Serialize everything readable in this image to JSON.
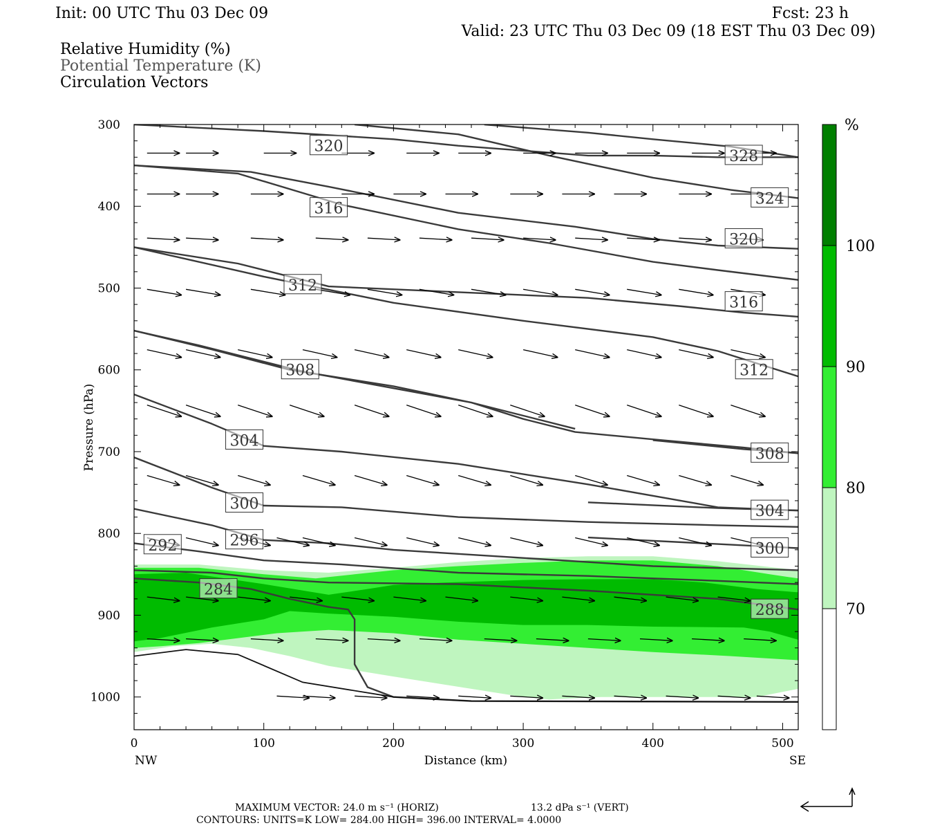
{
  "header": {
    "init": "Init: 00 UTC Thu 03 Dec 09",
    "fcst": "Fcst:   23 h",
    "valid": "Valid: 23 UTC Thu 03 Dec 09 (18 EST Thu 03 Dec 09)",
    "legend_lines": [
      "Relative Humidity (%)",
      "Potential Temperature (K)",
      "Circulation Vectors"
    ]
  },
  "chart_data": {
    "type": "cross-section",
    "xlabel": "Distance (km)",
    "ylabel": "Pressure (hPa)",
    "xlim": [
      0,
      512
    ],
    "ylim": [
      1040,
      300
    ],
    "x_ticks": [
      0,
      100,
      200,
      300,
      400,
      500
    ],
    "y_ticks": [
      300,
      400,
      500,
      600,
      700,
      800,
      900,
      1000
    ],
    "x_end_labels": {
      "left": "NW",
      "right": "SE"
    },
    "colorbar": {
      "unit": "%",
      "levels": [
        70,
        80,
        90,
        100
      ],
      "colors": [
        "#ffffff",
        "#bff5bf",
        "#33ee33",
        "#00bb00",
        "#007f00"
      ]
    },
    "rh_fills": [
      {
        "level": 70,
        "color": "#bff5bf",
        "points": [
          [
            0,
            838
          ],
          [
            50,
            838
          ],
          [
            100,
            845
          ],
          [
            150,
            848
          ],
          [
            200,
            842
          ],
          [
            250,
            835
          ],
          [
            300,
            830
          ],
          [
            350,
            828
          ],
          [
            400,
            828
          ],
          [
            450,
            834
          ],
          [
            512,
            845
          ],
          [
            512,
            990
          ],
          [
            480,
            1000
          ],
          [
            420,
            1000
          ],
          [
            360,
            1000
          ],
          [
            320,
            1003
          ],
          [
            300,
            1000
          ],
          [
            260,
            990
          ],
          [
            200,
            975
          ],
          [
            150,
            962
          ],
          [
            120,
            950
          ],
          [
            90,
            940
          ],
          [
            60,
            935
          ],
          [
            30,
            938
          ],
          [
            0,
            945
          ]
        ]
      },
      {
        "level": 80,
        "color": "#33ee33",
        "points": [
          [
            0,
            842
          ],
          [
            50,
            842
          ],
          [
            100,
            850
          ],
          [
            140,
            855
          ],
          [
            170,
            850
          ],
          [
            200,
            845
          ],
          [
            250,
            840
          ],
          [
            300,
            836
          ],
          [
            350,
            833
          ],
          [
            400,
            833
          ],
          [
            450,
            840
          ],
          [
            490,
            850
          ],
          [
            512,
            855
          ],
          [
            512,
            955
          ],
          [
            460,
            950
          ],
          [
            400,
            945
          ],
          [
            350,
            940
          ],
          [
            300,
            935
          ],
          [
            250,
            930
          ],
          [
            200,
            922
          ],
          [
            150,
            918
          ],
          [
            110,
            922
          ],
          [
            80,
            928
          ],
          [
            50,
            934
          ],
          [
            20,
            938
          ],
          [
            0,
            940
          ]
        ]
      },
      {
        "level": 90,
        "color": "#00bb00",
        "points": [
          [
            0,
            850
          ],
          [
            40,
            848
          ],
          [
            70,
            855
          ],
          [
            100,
            862
          ],
          [
            150,
            875
          ],
          [
            180,
            868
          ],
          [
            200,
            863
          ],
          [
            240,
            860
          ],
          [
            300,
            857
          ],
          [
            350,
            856
          ],
          [
            400,
            856
          ],
          [
            440,
            860
          ],
          [
            480,
            868
          ],
          [
            512,
            872
          ],
          [
            512,
            930
          ],
          [
            490,
            920
          ],
          [
            470,
            915
          ],
          [
            400,
            914
          ],
          [
            350,
            912
          ],
          [
            300,
            912
          ],
          [
            250,
            908
          ],
          [
            200,
            902
          ],
          [
            150,
            898
          ],
          [
            120,
            895
          ],
          [
            100,
            905
          ],
          [
            60,
            915
          ],
          [
            20,
            928
          ],
          [
            0,
            932
          ]
        ]
      }
    ],
    "theta_contours": [
      {
        "label": "320",
        "label_at": [
          150,
          326
        ],
        "points": [
          [
            0,
            300
          ],
          [
            100,
            308
          ],
          [
            200,
            318
          ],
          [
            250,
            326
          ],
          [
            300,
            332
          ],
          [
            350,
            338
          ],
          [
            400,
            338
          ],
          [
            450,
            340
          ],
          [
            512,
            340
          ]
        ]
      },
      {
        "label": "328",
        "label_at": [
          470,
          338
        ],
        "points": [
          [
            270,
            300
          ],
          [
            350,
            310
          ],
          [
            400,
            318
          ],
          [
            460,
            327
          ],
          [
            512,
            340
          ]
        ]
      },
      {
        "label": "324",
        "label_at": [
          490,
          390
        ],
        "points": [
          [
            170,
            300
          ],
          [
            250,
            312
          ],
          [
            320,
            338
          ],
          [
            400,
            365
          ],
          [
            460,
            380
          ],
          [
            512,
            390
          ]
        ]
      },
      {
        "label": "316",
        "label_at": [
          150,
          402
        ],
        "points": [
          [
            0,
            350
          ],
          [
            80,
            360
          ],
          [
            160,
            398
          ],
          [
            250,
            428
          ],
          [
            320,
            445
          ],
          [
            400,
            468
          ],
          [
            450,
            478
          ],
          [
            512,
            490
          ]
        ]
      },
      {
        "label": "320",
        "label_at": [
          470,
          440
        ],
        "points": [
          [
            0,
            350
          ],
          [
            90,
            358
          ],
          [
            150,
            376
          ],
          [
            250,
            408
          ],
          [
            340,
            425
          ],
          [
            400,
            440
          ],
          [
            450,
            448
          ],
          [
            512,
            452
          ]
        ]
      },
      {
        "label": "312",
        "label_at": [
          130,
          496
        ],
        "points": [
          [
            0,
            450
          ],
          [
            100,
            486
          ],
          [
            200,
            518
          ],
          [
            300,
            540
          ],
          [
            400,
            560
          ],
          [
            450,
            577
          ],
          [
            512,
            608
          ]
        ]
      },
      {
        "label": "316",
        "label_at": [
          470,
          517
        ],
        "points": [
          [
            0,
            450
          ],
          [
            80,
            470
          ],
          [
            150,
            498
          ],
          [
            250,
            505
          ],
          [
            350,
            512
          ],
          [
            420,
            522
          ],
          [
            470,
            530
          ],
          [
            512,
            535
          ]
        ]
      },
      {
        "label": "308",
        "label_at": [
          128,
          600
        ],
        "points": [
          [
            0,
            552
          ],
          [
            60,
            575
          ],
          [
            120,
            600
          ],
          [
            200,
            620
          ],
          [
            260,
            640
          ],
          [
            300,
            660
          ],
          [
            340,
            676
          ],
          [
            400,
            685
          ],
          [
            470,
            695
          ],
          [
            512,
            702
          ]
        ]
      },
      {
        "label": "312",
        "label_at": [
          478,
          600
        ],
        "points": [
          [
            0,
            552
          ],
          [
            50,
            570
          ],
          [
            130,
            602
          ],
          [
            260,
            640
          ],
          [
            340,
            672
          ]
        ]
      },
      {
        "label": "304",
        "label_at": [
          85,
          686
        ],
        "points": [
          [
            0,
            630
          ],
          [
            60,
            666
          ],
          [
            100,
            693
          ],
          [
            160,
            700
          ],
          [
            250,
            715
          ],
          [
            350,
            740
          ],
          [
            450,
            768
          ],
          [
            512,
            772
          ]
        ]
      },
      {
        "label": "308",
        "label_at": [
          490,
          702
        ],
        "points": [
          [
            400,
            686
          ],
          [
            470,
            697
          ],
          [
            512,
            702
          ]
        ]
      },
      {
        "label": "300",
        "label_at": [
          85,
          763
        ],
        "points": [
          [
            0,
            707
          ],
          [
            60,
            744
          ],
          [
            100,
            766
          ],
          [
            160,
            768
          ],
          [
            250,
            780
          ],
          [
            350,
            786
          ],
          [
            450,
            790
          ],
          [
            512,
            792
          ]
        ]
      },
      {
        "label": "304",
        "label_at": [
          490,
          772
        ],
        "points": [
          [
            350,
            762
          ],
          [
            450,
            769
          ],
          [
            512,
            772
          ]
        ]
      },
      {
        "label": "296",
        "label_at": [
          85,
          808
        ],
        "points": [
          [
            0,
            770
          ],
          [
            60,
            790
          ],
          [
            100,
            808
          ],
          [
            150,
            812
          ],
          [
            200,
            820
          ],
          [
            300,
            830
          ],
          [
            400,
            840
          ],
          [
            512,
            845
          ]
        ]
      },
      {
        "label": "300",
        "label_at": [
          490,
          818
        ],
        "points": [
          [
            350,
            805
          ],
          [
            450,
            813
          ],
          [
            512,
            818
          ]
        ]
      },
      {
        "label": "292",
        "label_at": [
          22,
          814
        ],
        "points": [
          [
            0,
            812
          ],
          [
            50,
            822
          ],
          [
            100,
            833
          ],
          [
            160,
            838
          ],
          [
            250,
            848
          ],
          [
            350,
            852
          ],
          [
            450,
            858
          ],
          [
            512,
            862
          ]
        ]
      },
      {
        "label": "288",
        "label_at": [
          490,
          893
        ],
        "points": [
          [
            0,
            845
          ],
          [
            60,
            848
          ],
          [
            100,
            855
          ],
          [
            150,
            860
          ],
          [
            250,
            862
          ],
          [
            350,
            870
          ],
          [
            450,
            880
          ],
          [
            512,
            893
          ]
        ]
      },
      {
        "label": "284",
        "label_at": [
          65,
          868
        ],
        "points": [
          [
            0,
            855
          ],
          [
            50,
            860
          ],
          [
            90,
            868
          ],
          [
            120,
            880
          ],
          [
            150,
            890
          ],
          [
            165,
            893
          ],
          [
            170,
            905
          ],
          [
            170,
            960
          ],
          [
            180,
            988
          ],
          [
            200,
            1000
          ],
          [
            260,
            1005
          ],
          [
            512,
            1006
          ]
        ]
      }
    ],
    "terrain": [
      [
        0,
        950
      ],
      [
        40,
        942
      ],
      [
        80,
        948
      ],
      [
        130,
        982
      ],
      [
        200,
        1000
      ],
      [
        260,
        1005
      ],
      [
        512,
        1006
      ]
    ],
    "max_vector": "MAXIMUM VECTOR:  24.0 m s⁻¹ (HORIZ)",
    "max_vector_vert": "13.2 dPa s⁻¹ (VERT)",
    "contours_info": "CONTOURS:  UNITS=K  LOW=  284.00      HIGH=  396.00      INTERVAL=    4.0000",
    "vector_rows": [
      {
        "p": 335,
        "du": 0.85,
        "dw": 0.0,
        "xs": [
          10,
          40,
          100,
          160,
          210,
          250,
          300,
          340,
          380,
          430,
          470
        ]
      },
      {
        "p": 385,
        "du": 0.85,
        "dw": 0.0,
        "xs": [
          10,
          40,
          90,
          160,
          200,
          240,
          290,
          330,
          370,
          420,
          460
        ]
      },
      {
        "p": 440,
        "du": 0.85,
        "dw": 0.05,
        "xs": [
          10,
          40,
          90,
          140,
          180,
          220,
          260,
          300,
          340,
          380,
          420,
          460
        ]
      },
      {
        "p": 505,
        "du": 0.9,
        "dw": 0.15,
        "xs": [
          10,
          40,
          90,
          140,
          180,
          220,
          260,
          300,
          340,
          380,
          420,
          460
        ]
      },
      {
        "p": 580,
        "du": 0.9,
        "dw": 0.2,
        "xs": [
          10,
          40,
          80,
          130,
          170,
          210,
          250,
          300,
          340,
          380,
          420,
          460
        ]
      },
      {
        "p": 650,
        "du": 0.9,
        "dw": 0.3,
        "xs": [
          10,
          40,
          80,
          120,
          170,
          210,
          250,
          290,
          340,
          380,
          420,
          460
        ]
      },
      {
        "p": 735,
        "du": 0.85,
        "dw": 0.25,
        "xs": [
          10,
          40,
          80,
          130,
          170,
          210,
          250,
          290,
          340,
          380,
          420,
          460
        ]
      },
      {
        "p": 810,
        "du": 0.85,
        "dw": 0.2,
        "xs": [
          10,
          40,
          80,
          110,
          130,
          170,
          210,
          250,
          290,
          340,
          380,
          420,
          460
        ]
      },
      {
        "p": 880,
        "du": 0.85,
        "dw": 0.1,
        "xs": [
          10,
          40,
          80,
          120,
          160,
          200,
          240,
          290,
          330,
          370,
          410,
          450
        ]
      },
      {
        "p": 930,
        "du": 0.85,
        "dw": 0.05,
        "xs": [
          10,
          40,
          90,
          140,
          180,
          220,
          270,
          310,
          350,
          390,
          430,
          470
        ]
      },
      {
        "p": 1000,
        "du": 0.85,
        "dw": 0.05,
        "xs": [
          110,
          130,
          170,
          210,
          250,
          290,
          330,
          370,
          410,
          450,
          480
        ]
      }
    ]
  }
}
